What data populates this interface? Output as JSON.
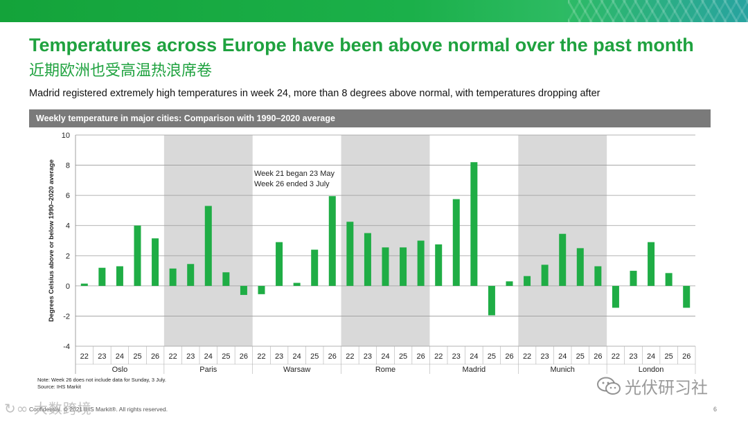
{
  "slide": {
    "title_en": "Temperatures across Europe have been above normal over the past month",
    "title_zh": "近期欧洲也受高温热浪席卷",
    "subtitle": "Madrid registered extremely high temperatures in week 24, more than 8 degrees above normal, with temperatures dropping after",
    "footer": "Confidential. © 2021 IHS Markit®. All rights reserved.",
    "page_number": "6",
    "watermark_left": "大数跨境",
    "watermark_right": "光伏研习社",
    "colors": {
      "accent": "#1fa23f",
      "bar": "#1fad45",
      "band": "#d9d9d9",
      "header": "#7a7a7a"
    }
  },
  "chart_data": {
    "type": "bar",
    "title": "Weekly temperature in major cities: Comparison with 1990–2020 average",
    "ylabel": "Degrees Celsius above or below 1990–2020 average",
    "xlabel": "",
    "ylim": [
      -4,
      10
    ],
    "yticks": [
      "-4",
      "-2",
      "0",
      "2",
      "4",
      "6",
      "8",
      "10"
    ],
    "grid": true,
    "annotation": [
      "Week 21 began 23 May",
      "Week 26 ended 3 July"
    ],
    "note": [
      "Note: Week 26 does not include data for Sunday, 3 July.",
      "Source: IHS Markit"
    ],
    "groups": [
      {
        "name": "Oslo",
        "shaded": false,
        "weeks": [
          "22",
          "23",
          "24",
          "25",
          "26"
        ],
        "values": [
          0.15,
          1.2,
          1.3,
          4.0,
          3.15
        ]
      },
      {
        "name": "Paris",
        "shaded": true,
        "weeks": [
          "22",
          "23",
          "24",
          "25",
          "26"
        ],
        "values": [
          1.15,
          1.45,
          5.3,
          0.9,
          -0.6
        ]
      },
      {
        "name": "Warsaw",
        "shaded": false,
        "weeks": [
          "22",
          "23",
          "24",
          "25",
          "26"
        ],
        "values": [
          -0.55,
          2.9,
          0.2,
          2.4,
          5.95
        ]
      },
      {
        "name": "Rome",
        "shaded": true,
        "weeks": [
          "22",
          "23",
          "24",
          "25",
          "26"
        ],
        "values": [
          4.25,
          3.5,
          2.55,
          2.55,
          3.0
        ]
      },
      {
        "name": "Madrid",
        "shaded": false,
        "weeks": [
          "22",
          "23",
          "24",
          "25",
          "26"
        ],
        "values": [
          2.75,
          5.75,
          8.2,
          -1.95,
          0.3
        ]
      },
      {
        "name": "Munich",
        "shaded": true,
        "weeks": [
          "22",
          "23",
          "24",
          "25",
          "26"
        ],
        "values": [
          0.65,
          1.4,
          3.45,
          2.5,
          1.3
        ]
      },
      {
        "name": "London",
        "shaded": false,
        "weeks": [
          "22",
          "23",
          "24",
          "25",
          "26"
        ],
        "values": [
          -1.45,
          1.0,
          2.9,
          0.85,
          -1.45
        ]
      }
    ]
  }
}
